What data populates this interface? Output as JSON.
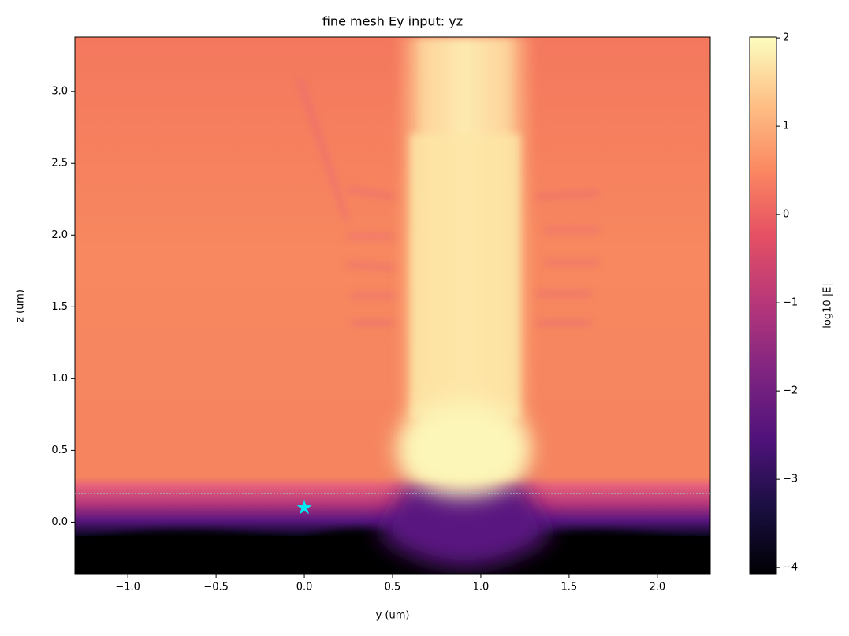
{
  "chart_data": {
    "type": "heatmap",
    "title": "fine mesh Ey input: yz",
    "x_label": "y (um)",
    "y_label": "z (um)",
    "colorbar_label": "log10 |E|",
    "colormap": "magma",
    "xlim": [
      -1.3,
      2.3
    ],
    "ylim": [
      -0.36,
      3.38
    ],
    "xticks": [
      {
        "value": -1.0,
        "label": "−1.0"
      },
      {
        "value": -0.5,
        "label": "−0.5"
      },
      {
        "value": 0.0,
        "label": "0.0"
      },
      {
        "value": 0.5,
        "label": "0.5"
      },
      {
        "value": 1.0,
        "label": "1.0"
      },
      {
        "value": 1.5,
        "label": "1.5"
      },
      {
        "value": 2.0,
        "label": "2.0"
      }
    ],
    "yticks": [
      {
        "value": 0.0,
        "label": "0.0"
      },
      {
        "value": 0.5,
        "label": "0.5"
      },
      {
        "value": 1.0,
        "label": "1.0"
      },
      {
        "value": 1.5,
        "label": "1.5"
      },
      {
        "value": 2.0,
        "label": "2.0"
      },
      {
        "value": 2.5,
        "label": "2.5"
      },
      {
        "value": 3.0,
        "label": "3.0"
      }
    ],
    "clim": [
      -4.07,
      2.01
    ],
    "cticks": [
      2,
      1,
      0,
      {
        "value": -1,
        "label": "−1"
      },
      {
        "value": -2,
        "label": "−2"
      },
      {
        "value": -3,
        "label": "−3"
      },
      {
        "value": -4,
        "label": "−4"
      }
    ],
    "marker": {
      "x": 0,
      "y": 0.1,
      "color": "#00e8f0"
    },
    "hline": {
      "y": 0.2,
      "color": "#9fc4d0"
    }
  }
}
